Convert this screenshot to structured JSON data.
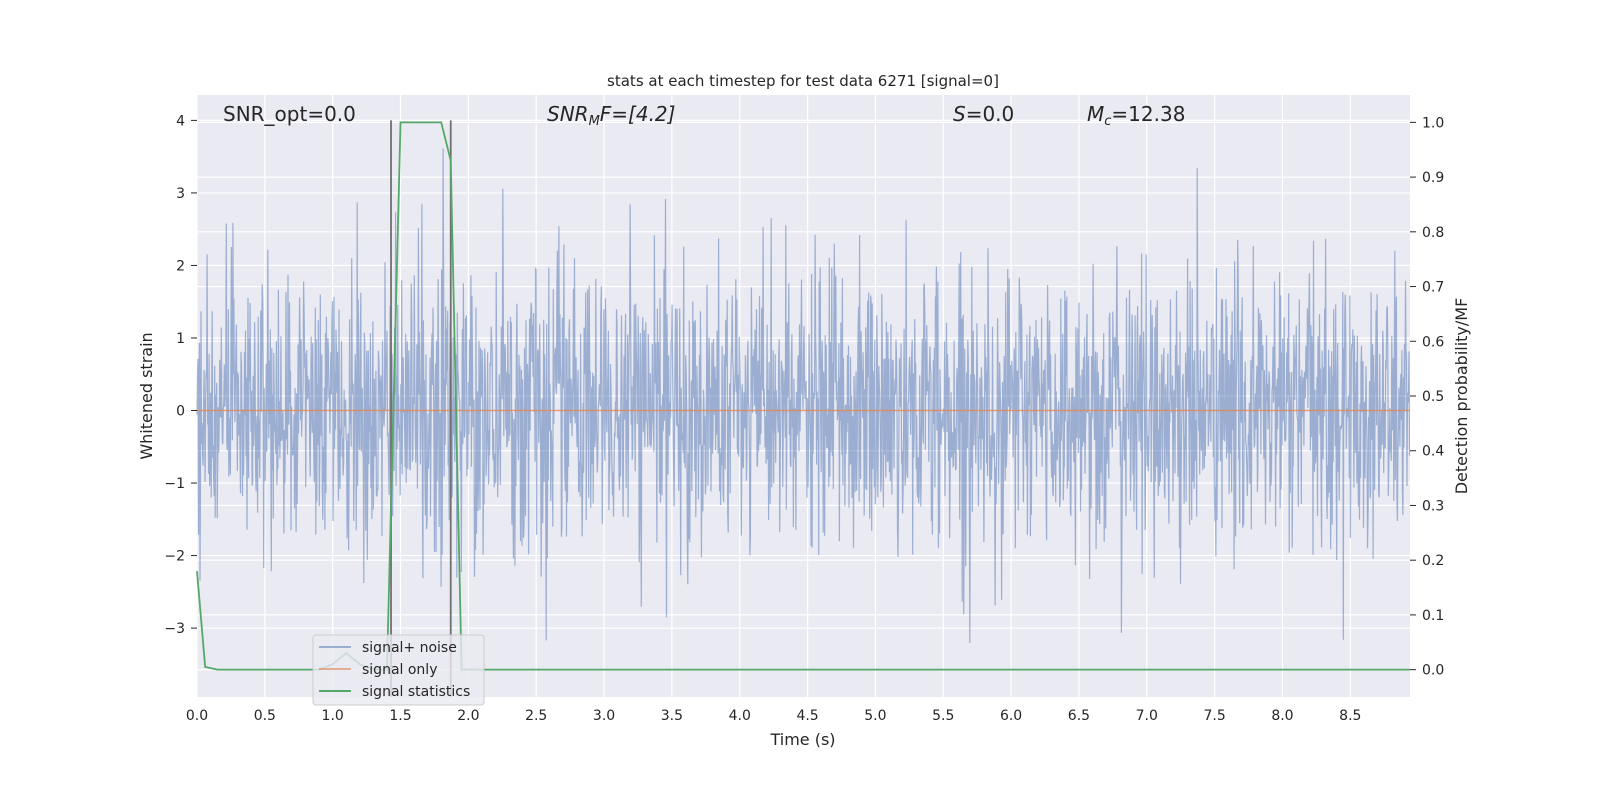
{
  "chart_data": {
    "type": "line",
    "title": "stats at each timestep for test data 6271 [signal=0]",
    "xlabel": "Time (s)",
    "ylabel": "Whitened strain",
    "ylabel_right": "Detection probability/MF",
    "xlim": [
      0,
      8.94
    ],
    "ylim": [
      -3.95,
      4.35
    ],
    "ylim_right": [
      -0.05,
      1.05
    ],
    "x_ticks": [
      "0.0",
      "0.5",
      "1.0",
      "1.5",
      "2.0",
      "2.5",
      "3.0",
      "3.5",
      "4.0",
      "4.5",
      "5.0",
      "5.5",
      "6.0",
      "6.5",
      "7.0",
      "7.5",
      "8.0",
      "8.5"
    ],
    "y_ticks": [
      "4",
      "3",
      "2",
      "1",
      "0",
      "−1",
      "−2",
      "−3"
    ],
    "y_tick_values": [
      4,
      3,
      2,
      1,
      0,
      -1,
      -2,
      -3
    ],
    "y_right_ticks": [
      "1.0",
      "0.9",
      "0.8",
      "0.7",
      "0.6",
      "0.5",
      "0.4",
      "0.3",
      "0.2",
      "0.1",
      "0.0"
    ],
    "y_right_tick_values": [
      1.0,
      0.9,
      0.8,
      0.7,
      0.6,
      0.5,
      0.4,
      0.3,
      0.2,
      0.1,
      0.0
    ],
    "grid": true,
    "annotations": {
      "snr_opt": "SNR_opt=0.0",
      "snr_mf_base": "SNR",
      "snr_mf_sub": "M",
      "snr_mf_rest": "F=[4.2]",
      "s_italic": "S",
      "s_rest": "=0.0",
      "mc_base": "M",
      "mc_sub": "c",
      "mc_rest": "=12.38"
    },
    "vertical_markers": [
      1.43,
      1.87
    ],
    "legend": {
      "placement": "lower-left",
      "entries": [
        "signal+ noise",
        "signal only",
        "signal statistics"
      ]
    },
    "series": [
      {
        "name": "signal+ noise",
        "axis": "left",
        "color": "#4c72b0",
        "note_rms": 0.95,
        "max": 4.0,
        "min": -3.6
      },
      {
        "name": "signal only",
        "axis": "left",
        "color": "#dd8452",
        "x": [
          0,
          8.94
        ],
        "y": [
          0,
          0
        ]
      },
      {
        "name": "signal statistics",
        "axis": "right",
        "color": "#55a868",
        "x": [
          0,
          0.06,
          0.15,
          0.9,
          1.0,
          1.1,
          1.2,
          1.3,
          1.4,
          1.5,
          1.6,
          1.7,
          1.8,
          1.87,
          1.95,
          2.05,
          8.94
        ],
        "y": [
          0.18,
          0.005,
          0.0,
          0.0,
          0.01,
          0.03,
          0.01,
          0.0,
          0.0,
          1.0,
          1.0,
          1.0,
          1.0,
          0.93,
          0.0,
          0.0,
          0.0
        ]
      }
    ]
  }
}
